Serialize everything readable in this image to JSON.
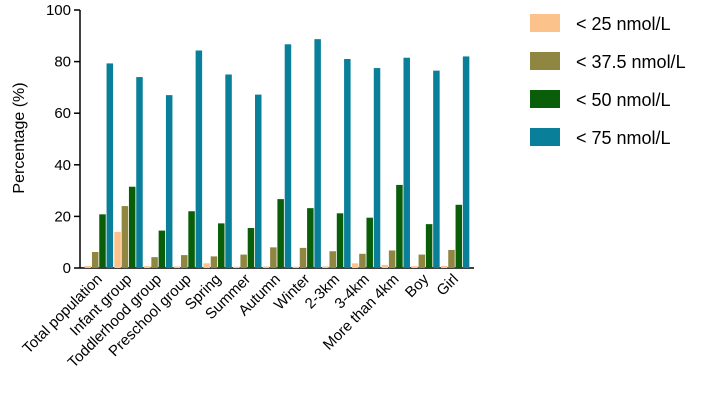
{
  "chart_data": {
    "type": "bar",
    "title": "",
    "xlabel": "",
    "ylabel": "Percentage (%)",
    "ylim": [
      0,
      100
    ],
    "yticks": [
      0,
      20,
      40,
      60,
      80,
      100
    ],
    "grid": false,
    "legend_position": "right",
    "categories": [
      "Total population",
      "Infant group",
      "Toddlerhood group",
      "Preschool group",
      "Spring",
      "Summer",
      "Autumn",
      "Winter",
      "2-3km",
      "3-4km",
      "More than 4km",
      "Boy",
      "Girl"
    ],
    "series": [
      {
        "name": "< 25 nmol/L",
        "color": "#fcc28c",
        "values": [
          0.8,
          14.0,
          0.7,
          0.6,
          1.8,
          0.5,
          0.6,
          0.5,
          0.6,
          1.8,
          1.2,
          0.7,
          0.8
        ]
      },
      {
        "name": "< 37.5 nmol/L",
        "color": "#8f8642",
        "values": [
          6.2,
          24.0,
          4.2,
          5.0,
          4.5,
          5.2,
          8.0,
          7.8,
          6.5,
          5.5,
          6.8,
          5.2,
          7.0
        ]
      },
      {
        "name": "< 50  nmol/L",
        "color": "#0a5e0a",
        "values": [
          20.8,
          31.5,
          14.5,
          22.0,
          17.3,
          15.5,
          26.7,
          23.2,
          21.2,
          19.5,
          32.2,
          17.0,
          24.5
        ]
      },
      {
        "name": "< 75  nmol/L",
        "color": "#0a7f99",
        "values": [
          79.3,
          74.0,
          67.0,
          84.3,
          75.0,
          67.2,
          86.7,
          88.7,
          81.0,
          77.5,
          81.5,
          76.5,
          82.0
        ]
      }
    ]
  }
}
